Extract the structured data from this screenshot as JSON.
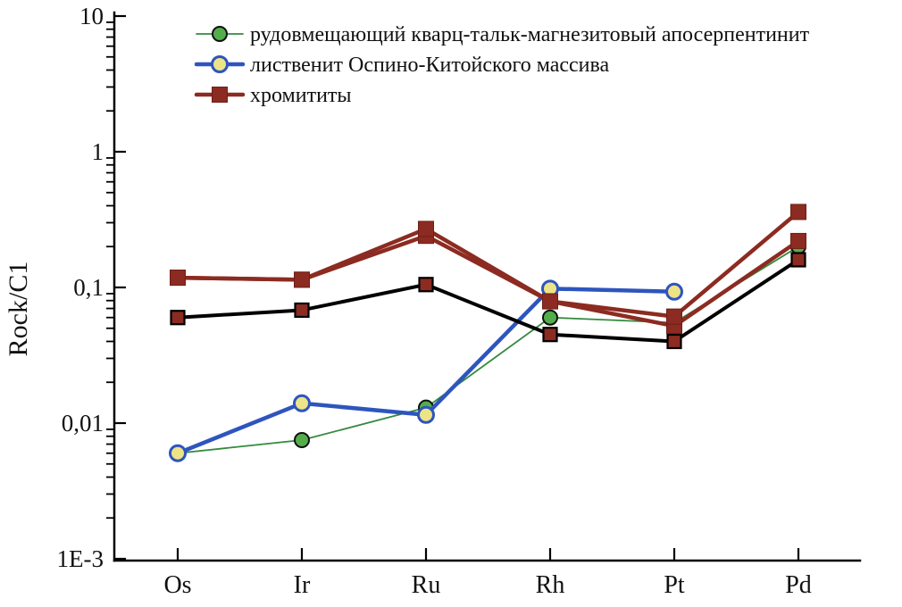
{
  "figure": {
    "background": "#ffffff"
  },
  "chart_data": {
    "type": "line",
    "title": "",
    "xlabel": "",
    "ylabel": "Rock/C1",
    "x_categories": [
      "Os",
      "Ir",
      "Ru",
      "Rh",
      "Pt",
      "Pd"
    ],
    "y_scale": "log",
    "ylim": [
      0.001,
      10
    ],
    "y_ticks": [
      "10",
      "1",
      "0,1",
      "0,01",
      "1E-3"
    ],
    "y_tick_values": [
      10,
      1,
      0.1,
      0.01,
      0.001
    ],
    "grid": false,
    "legend_position": "top-left-inside",
    "legend": [
      {
        "label": "рудовмещающий кварц-тальк-магнезитовый апосерпентинит",
        "series_id": "aposerpentinite"
      },
      {
        "label": "лиственит Оспино-Китойского массива",
        "series_id": "listvenite"
      },
      {
        "label": "хромититы",
        "series_id": "chromitite-a"
      }
    ],
    "series": [
      {
        "id": "aposerpentinite",
        "legend_group": "рудовмещающий кварц-тальк-магнезитовый апосерпентинит",
        "line_color": "#338A3E",
        "line_width": 1.8,
        "marker": "circle",
        "marker_size": 16,
        "marker_fill": "#54AD4B",
        "marker_stroke": "#101010",
        "marker_stroke_width": 2,
        "values": [
          0.006,
          0.0075,
          0.013,
          0.06,
          0.055,
          0.2
        ]
      },
      {
        "id": "listvenite",
        "legend_group": "лиственит Оспино-Китойского массива",
        "line_color": "#2E55BE",
        "line_width": 4.5,
        "marker": "circle",
        "marker_size": 17,
        "marker_fill": "#EDE487",
        "marker_stroke": "#2E55BE",
        "marker_stroke_width": 3,
        "values": [
          0.006,
          0.014,
          0.0115,
          0.098,
          0.093,
          null
        ]
      },
      {
        "id": "chromitite-black-line",
        "legend_group": "хромититы",
        "line_color": "#000000",
        "line_width": 4,
        "marker": "square",
        "marker_size": 15,
        "marker_fill": "#8C2B21",
        "marker_stroke": "#000000",
        "marker_stroke_width": 2.2,
        "values": [
          0.06,
          0.068,
          0.105,
          0.045,
          0.04,
          0.16
        ]
      },
      {
        "id": "chromitite-b",
        "legend_group": "хромититы",
        "line_color": "#8C2B21",
        "line_width": 4.5,
        "marker": "square",
        "marker_size": 17,
        "marker_fill": "#8C2B21",
        "marker_stroke": "#6E1F18",
        "marker_stroke_width": 1,
        "values": [
          0.118,
          0.114,
          0.24,
          0.079,
          0.052,
          0.22
        ]
      },
      {
        "id": "chromitite-a",
        "legend_group": "хромититы",
        "line_color": "#8C2B21",
        "line_width": 4.5,
        "marker": "square",
        "marker_size": 17,
        "marker_fill": "#8C2B21",
        "marker_stroke": "#6E1F18",
        "marker_stroke_width": 1,
        "values": [
          0.118,
          0.114,
          0.27,
          0.079,
          0.061,
          0.36
        ]
      }
    ]
  }
}
